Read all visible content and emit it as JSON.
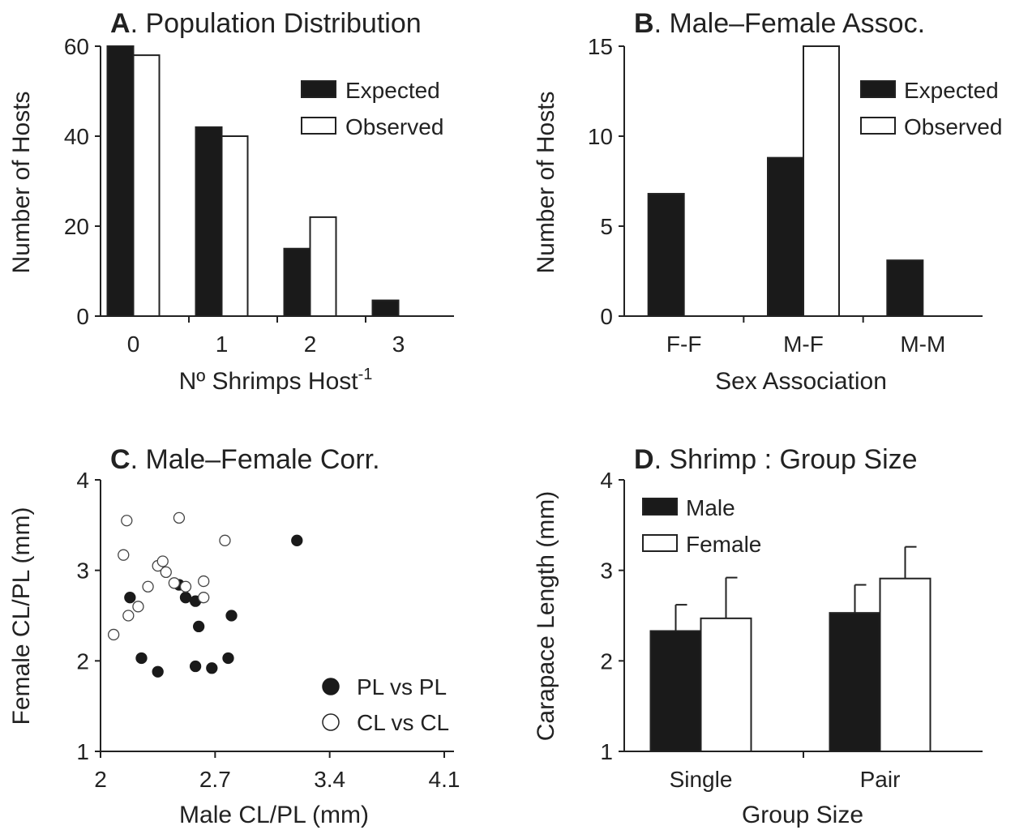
{
  "chart_data": [
    {
      "panel": "A",
      "type": "bar",
      "title_letter": "A",
      "title": ". Population Distribution",
      "xlabel": "Nº Shrimps Host",
      "xlabel_sup": "-1",
      "ylabel": "Number of Hosts",
      "categories": [
        "0",
        "1",
        "2",
        "3"
      ],
      "ylim": [
        0,
        60
      ],
      "yticks": [
        0,
        20,
        40,
        60
      ],
      "legend_position": "top-right",
      "series": [
        {
          "name": "Expected",
          "values": [
            60,
            42,
            15,
            3.5
          ],
          "color": "#1a1a1a"
        },
        {
          "name": "Observed",
          "values": [
            58,
            40,
            22,
            0
          ],
          "color": "#ffffff"
        }
      ]
    },
    {
      "panel": "B",
      "type": "bar",
      "title_letter": "B",
      "title": ". Male–Female Assoc.",
      "xlabel": "Sex Association",
      "ylabel": "Number of Hosts",
      "categories": [
        "F-F",
        "M-F",
        "M-M"
      ],
      "ylim": [
        0,
        15
      ],
      "yticks": [
        0,
        5,
        10,
        15
      ],
      "legend_position": "top-right",
      "series": [
        {
          "name": "Expected",
          "values": [
            6.8,
            8.8,
            3.1
          ],
          "color": "#1a1a1a"
        },
        {
          "name": "Observed",
          "values": [
            0,
            15,
            0
          ],
          "color": "#ffffff"
        }
      ]
    },
    {
      "panel": "C",
      "type": "scatter",
      "title_letter": "C",
      "title": ". Male–Female Corr.",
      "xlabel": "Male CL/PL (mm)",
      "ylabel": "Female CL/PL (mm)",
      "xlim": [
        2,
        4.1
      ],
      "ylim": [
        1,
        4
      ],
      "xticks": [
        "2",
        "2.7",
        "3.4",
        "4.1"
      ],
      "yticks": [
        "1",
        "2",
        "3",
        "4"
      ],
      "legend_position": "bottom-right",
      "series": [
        {
          "name": "PL vs PL",
          "filled": true,
          "points": [
            [
              2.18,
              2.7
            ],
            [
              2.25,
              2.03
            ],
            [
              2.35,
              1.88
            ],
            [
              2.48,
              2.84
            ],
            [
              2.52,
              2.7
            ],
            [
              2.58,
              2.66
            ],
            [
              2.6,
              2.38
            ],
            [
              2.58,
              1.94
            ],
            [
              2.68,
              1.92
            ],
            [
              2.78,
              2.03
            ],
            [
              2.8,
              2.5
            ],
            [
              3.2,
              3.33
            ]
          ]
        },
        {
          "name": "CL vs CL",
          "filled": false,
          "points": [
            [
              2.08,
              2.29
            ],
            [
              2.14,
              3.17
            ],
            [
              2.16,
              3.55
            ],
            [
              2.17,
              2.5
            ],
            [
              2.23,
              2.6
            ],
            [
              2.29,
              2.82
            ],
            [
              2.35,
              3.05
            ],
            [
              2.38,
              3.1
            ],
            [
              2.4,
              2.98
            ],
            [
              2.45,
              2.86
            ],
            [
              2.48,
              3.58
            ],
            [
              2.52,
              2.82
            ],
            [
              2.63,
              2.88
            ],
            [
              2.63,
              2.7
            ],
            [
              2.76,
              3.33
            ]
          ]
        }
      ]
    },
    {
      "panel": "D",
      "type": "bar",
      "title_letter": "D",
      "title": ". Shrimp : Group Size",
      "xlabel": "Group Size",
      "ylabel": "Carapace Length (mm)",
      "categories": [
        "Single",
        "Pair"
      ],
      "ylim": [
        1,
        4
      ],
      "yticks": [
        1,
        2,
        3,
        4
      ],
      "legend_position": "top-left",
      "series": [
        {
          "name": "Male",
          "values": [
            2.33,
            2.53
          ],
          "errors": [
            0.29,
            0.31
          ],
          "color": "#1a1a1a"
        },
        {
          "name": "Female",
          "values": [
            2.47,
            2.91
          ],
          "errors": [
            0.45,
            0.35
          ],
          "color": "#ffffff"
        }
      ]
    }
  ]
}
